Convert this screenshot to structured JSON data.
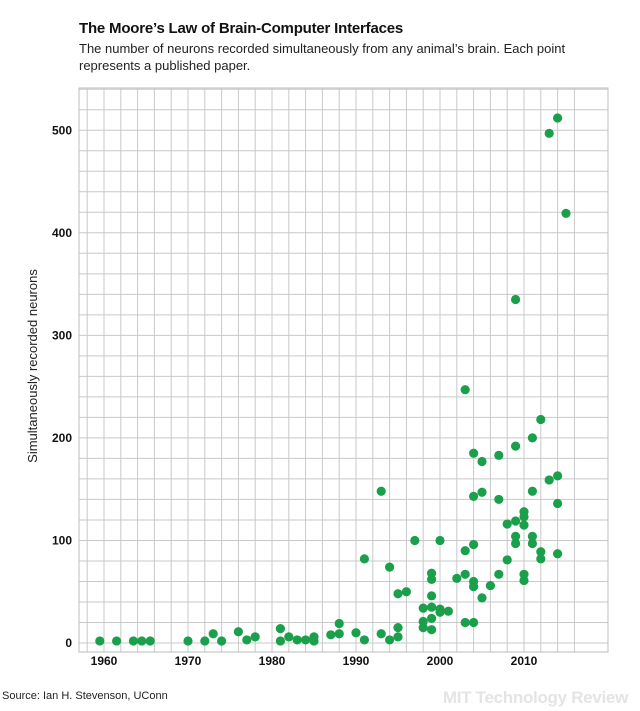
{
  "title": "The Moore’s Law of Brain-Computer Interfaces",
  "subtitle": "The number of neurons recorded simultaneously from any animal’s brain. Each point represents a published paper.",
  "source": "Source: Ian H. Stevenson, UConn",
  "watermark": "MIT Technology Review",
  "chart_data": {
    "type": "scatter",
    "title": "The Moore’s Law of Brain-Computer Interfaces",
    "xlabel": "",
    "ylabel": "Simultaneously recorded neurons",
    "xlim": [
      1957,
      2016
    ],
    "ylim": [
      0,
      520
    ],
    "x_ticks": [
      1960,
      1970,
      1980,
      1990,
      2000,
      2010
    ],
    "y_ticks": [
      0,
      100,
      200,
      300,
      400,
      500
    ],
    "grid": true,
    "point_color": "#1aa04a",
    "points": [
      [
        1959.5,
        2
      ],
      [
        1961.5,
        2
      ],
      [
        1963.5,
        2
      ],
      [
        1964.5,
        2
      ],
      [
        1965.5,
        2
      ],
      [
        1970,
        2
      ],
      [
        1972,
        2
      ],
      [
        1973,
        9
      ],
      [
        1974,
        2
      ],
      [
        1976,
        11
      ],
      [
        1977,
        3
      ],
      [
        1978,
        6
      ],
      [
        1981,
        14
      ],
      [
        1981,
        2
      ],
      [
        1982,
        6
      ],
      [
        1983,
        3
      ],
      [
        1984,
        3
      ],
      [
        1985,
        6
      ],
      [
        1985,
        2
      ],
      [
        1987,
        8
      ],
      [
        1988,
        19
      ],
      [
        1988,
        9
      ],
      [
        1990,
        10
      ],
      [
        1991,
        3
      ],
      [
        1991,
        82
      ],
      [
        1993,
        148
      ],
      [
        1993,
        9
      ],
      [
        1994,
        74
      ],
      [
        1994,
        3
      ],
      [
        1995,
        15
      ],
      [
        1995,
        6
      ],
      [
        1995,
        48
      ],
      [
        1996,
        50
      ],
      [
        1997,
        100
      ],
      [
        1998,
        34
      ],
      [
        1998,
        21
      ],
      [
        1998,
        15
      ],
      [
        1999,
        68
      ],
      [
        1999,
        62
      ],
      [
        1999,
        46
      ],
      [
        1999,
        35
      ],
      [
        1999,
        24
      ],
      [
        1999,
        13
      ],
      [
        2000,
        100
      ],
      [
        2000,
        33
      ],
      [
        2000,
        30
      ],
      [
        2001,
        31
      ],
      [
        2002,
        63
      ],
      [
        2003,
        247
      ],
      [
        2003,
        90
      ],
      [
        2003,
        67
      ],
      [
        2003,
        20
      ],
      [
        2004,
        185
      ],
      [
        2004,
        143
      ],
      [
        2004,
        96
      ],
      [
        2004,
        60
      ],
      [
        2004,
        55
      ],
      [
        2004,
        20
      ],
      [
        2005,
        177
      ],
      [
        2005,
        147
      ],
      [
        2005,
        44
      ],
      [
        2006,
        56
      ],
      [
        2007,
        183
      ],
      [
        2007,
        140
      ],
      [
        2007,
        67
      ],
      [
        2008,
        116
      ],
      [
        2008,
        81
      ],
      [
        2009,
        335
      ],
      [
        2009,
        192
      ],
      [
        2009,
        119
      ],
      [
        2009,
        104
      ],
      [
        2009,
        97
      ],
      [
        2010,
        128
      ],
      [
        2010,
        123
      ],
      [
        2010,
        115
      ],
      [
        2010,
        67
      ],
      [
        2010,
        61
      ],
      [
        2011,
        200
      ],
      [
        2011,
        148
      ],
      [
        2011,
        104
      ],
      [
        2011,
        97
      ],
      [
        2012,
        218
      ],
      [
        2012,
        89
      ],
      [
        2012,
        82
      ],
      [
        2013,
        497
      ],
      [
        2013,
        159
      ],
      [
        2014,
        512
      ],
      [
        2014,
        163
      ],
      [
        2014,
        136
      ],
      [
        2014,
        87
      ],
      [
        2015,
        419
      ]
    ]
  }
}
